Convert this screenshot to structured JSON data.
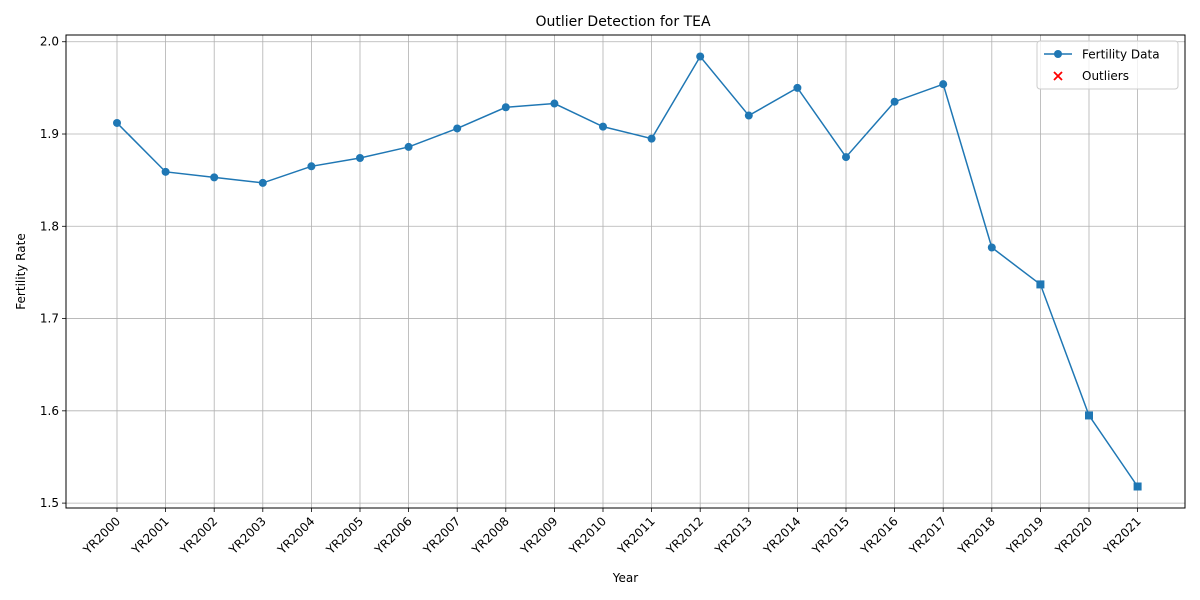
{
  "chart_data": {
    "type": "line",
    "title": "Outlier Detection for TEA",
    "xlabel": "Year",
    "ylabel": "Fertility Rate",
    "categories": [
      "YR2000",
      "YR2001",
      "YR2002",
      "YR2003",
      "YR2004",
      "YR2005",
      "YR2006",
      "YR2007",
      "YR2008",
      "YR2009",
      "YR2010",
      "YR2011",
      "YR2012",
      "YR2013",
      "YR2014",
      "YR2015",
      "YR2016",
      "YR2017",
      "YR2018",
      "YR2019",
      "YR2020",
      "YR2021"
    ],
    "series": [
      {
        "name": "Fertility Data",
        "color": "#1f77b4",
        "values": [
          1.912,
          1.859,
          1.853,
          1.847,
          1.865,
          1.874,
          1.886,
          1.906,
          1.929,
          1.933,
          1.908,
          1.895,
          1.984,
          1.92,
          1.95,
          1.875,
          1.935,
          1.954,
          1.777,
          1.737,
          1.595,
          1.518
        ]
      }
    ],
    "outliers": {
      "name": "Outliers",
      "color": "#ff0000",
      "marker": "x",
      "points": []
    },
    "square_markers": {
      "indices": [
        19,
        20,
        21
      ]
    },
    "yticks": [
      1.5,
      1.6,
      1.7,
      1.8,
      1.9,
      2.0
    ],
    "ylim": [
      1.4947,
      2.0073
    ],
    "grid": true,
    "legend": "top-right"
  }
}
